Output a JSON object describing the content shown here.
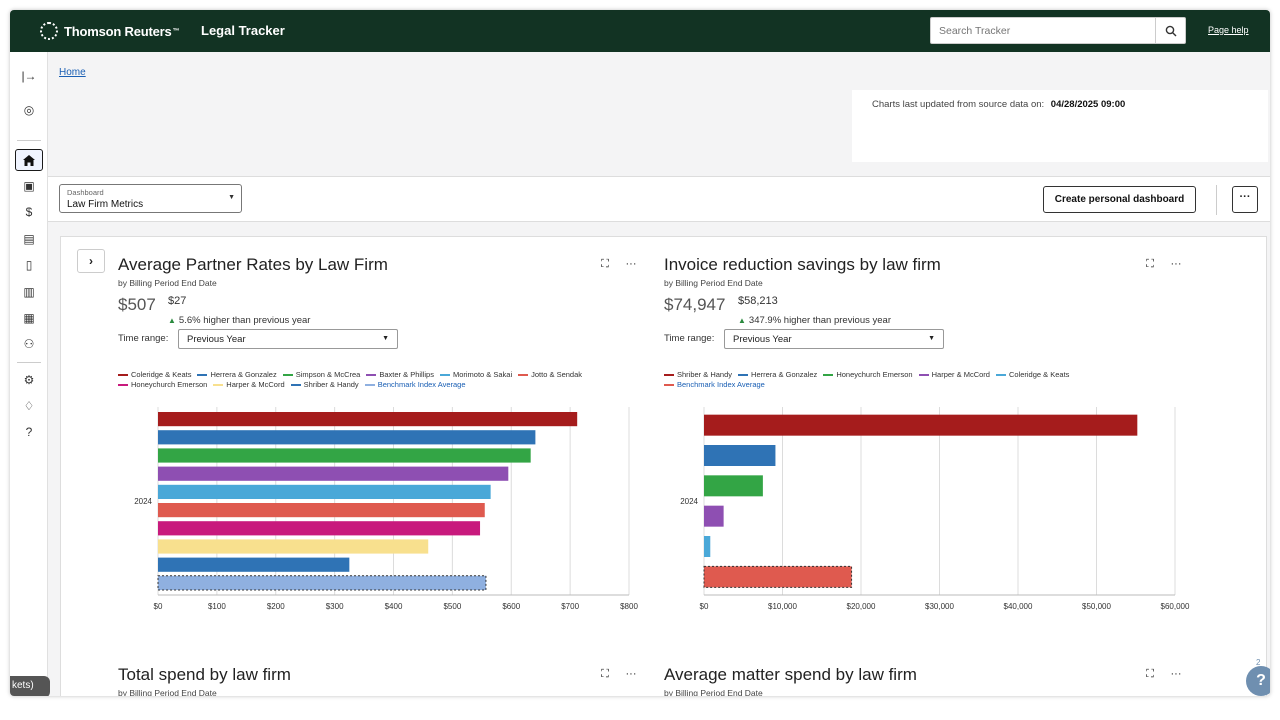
{
  "app": {
    "brand": "Thomson Reuters",
    "product": "Legal Tracker",
    "search_placeholder": "Search Tracker",
    "page_help": "Page help"
  },
  "breadcrumb": {
    "home": "Home"
  },
  "update": {
    "label": "Charts last updated from source data on:",
    "value": "04/28/2025 09:00"
  },
  "toolbar": {
    "dashboard_label": "Dashboard",
    "dashboard_value": "Law Firm Metrics",
    "create_button": "Create personal dashboard",
    "more_button": "···"
  },
  "sidebar": {
    "items": [
      {
        "icon": "collapse-icon",
        "glyph": "|→"
      },
      {
        "icon": "user-icon",
        "glyph": "◎"
      },
      {
        "icon": "home-icon",
        "glyph": "⌂"
      },
      {
        "icon": "briefcase-icon",
        "glyph": "▣"
      },
      {
        "icon": "dollar-icon",
        "glyph": "$"
      },
      {
        "icon": "book-icon",
        "glyph": "▤"
      },
      {
        "icon": "document-icon",
        "glyph": "▯"
      },
      {
        "icon": "bar-chart-icon",
        "glyph": "▥"
      },
      {
        "icon": "reports-icon",
        "glyph": "▦"
      },
      {
        "icon": "people-icon",
        "glyph": "⚇"
      },
      {
        "icon": "settings-icon",
        "glyph": "⚙"
      },
      {
        "icon": "bell-icon",
        "glyph": "♢"
      },
      {
        "icon": "help-icon",
        "glyph": "?"
      }
    ]
  },
  "colors": {
    "topbar": "#123323",
    "benchmark": "#8fb0e0"
  },
  "cards": [
    {
      "title": "Average Partner Rates by Law Firm",
      "subtitle": "by Billing Period End Date",
      "big_value": "$507",
      "delta": "$27",
      "pct": "5.6% higher than previous year",
      "time_range_label": "Time range:",
      "time_range_value": "Previous Year"
    },
    {
      "title": "Invoice reduction savings by law firm",
      "subtitle": "by Billing Period End Date",
      "big_value": "$74,947",
      "delta": "$58,213",
      "pct": "347.9% higher than previous year",
      "time_range_label": "Time range:",
      "time_range_value": "Previous Year"
    },
    {
      "title": "Total spend by law firm",
      "subtitle": "by Billing Period End Date"
    },
    {
      "title": "Average matter spend by law firm",
      "subtitle": "by Billing Period End Date"
    }
  ],
  "chart_data": [
    {
      "type": "bar",
      "orientation": "horizontal",
      "category": "2024",
      "xlim": [
        0,
        800
      ],
      "ticks": [
        "$0",
        "$100",
        "$200",
        "$300",
        "$400",
        "$500",
        "$600",
        "$700",
        "$800"
      ],
      "grid": true,
      "legend_position": "top",
      "series": [
        {
          "name": "Coleridge & Keats",
          "value": 712,
          "color": "#a51c1c"
        },
        {
          "name": "Herrera & Gonzalez",
          "value": 641,
          "color": "#2f73b5"
        },
        {
          "name": "Simpson & McCrea",
          "value": 633,
          "color": "#33a545"
        },
        {
          "name": "Baxter & Phillips",
          "value": 595,
          "color": "#8e4fb2"
        },
        {
          "name": "Morimoto & Sakai",
          "value": 565,
          "color": "#4aa8d8"
        },
        {
          "name": "Jotto & Sendak",
          "value": 555,
          "color": "#df5a4f"
        },
        {
          "name": "Honeychurch Emerson",
          "value": 547,
          "color": "#c81a7d"
        },
        {
          "name": "Harper & McCord",
          "value": 459,
          "color": "#f8e08e"
        },
        {
          "name": "Shriber & Handy",
          "value": 325,
          "color": "#2f73b5"
        },
        {
          "name": "Benchmark Index Average",
          "value": 557,
          "color": "#8fb0e0",
          "dashed": true
        }
      ]
    },
    {
      "type": "bar",
      "orientation": "horizontal",
      "category": "2024",
      "xlim": [
        0,
        60000
      ],
      "ticks": [
        "$0",
        "$10,000",
        "$20,000",
        "$30,000",
        "$40,000",
        "$50,000",
        "$60,000"
      ],
      "grid": true,
      "legend_position": "top",
      "series": [
        {
          "name": "Shriber & Handy",
          "value": 55200,
          "color": "#a51c1c"
        },
        {
          "name": "Herrera & Gonzalez",
          "value": 9100,
          "color": "#2f73b5"
        },
        {
          "name": "Honeychurch Emerson",
          "value": 7500,
          "color": "#33a545"
        },
        {
          "name": "Harper & McCord",
          "value": 2500,
          "color": "#8e4fb2"
        },
        {
          "name": "Coleridge & Keats",
          "value": 800,
          "color": "#4aa8d8"
        },
        {
          "name": "Benchmark Index Average",
          "value": 18800,
          "color": "#df5a4f",
          "dashed": true
        }
      ]
    }
  ],
  "misc": {
    "bottom_chip": "kets)",
    "help_fab": "?",
    "help_count": "2"
  }
}
